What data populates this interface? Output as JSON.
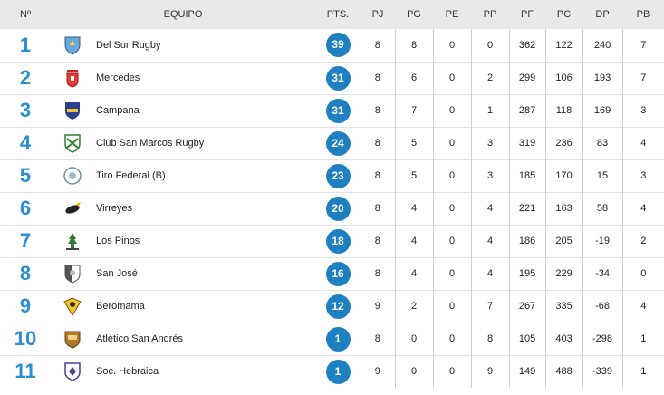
{
  "headers": {
    "pos": "Nº",
    "team": "EQUIPO",
    "pts": "PTS.",
    "pj": "PJ",
    "pg": "PG",
    "pe": "PE",
    "pp": "PP",
    "pf": "PF",
    "pc": "PC",
    "dp": "DP",
    "pb": "PB"
  },
  "rows": [
    {
      "pos": "1",
      "team": "Del Sur Rugby",
      "crest": "del-sur-shield-icon",
      "pts": "39",
      "pj": "8",
      "pg": "8",
      "pe": "0",
      "pp": "0",
      "pf": "362",
      "pc": "122",
      "dp": "240",
      "pb": "7"
    },
    {
      "pos": "2",
      "team": "Mercedes",
      "crest": "mercedes-crest-icon",
      "pts": "31",
      "pj": "8",
      "pg": "6",
      "pe": "0",
      "pp": "2",
      "pf": "299",
      "pc": "106",
      "dp": "193",
      "pb": "7"
    },
    {
      "pos": "3",
      "team": "Campana",
      "crest": "campana-crest-icon",
      "pts": "31",
      "pj": "8",
      "pg": "7",
      "pe": "0",
      "pp": "1",
      "pf": "287",
      "pc": "118",
      "dp": "169",
      "pb": "3"
    },
    {
      "pos": "4",
      "team": "Club San Marcos Rugby",
      "crest": "san-marcos-crest-icon",
      "pts": "24",
      "pj": "8",
      "pg": "5",
      "pe": "0",
      "pp": "3",
      "pf": "319",
      "pc": "236",
      "dp": "83",
      "pb": "4"
    },
    {
      "pos": "5",
      "team": "Tiro Federal (B)",
      "crest": "tiro-federal-crest-icon",
      "pts": "23",
      "pj": "8",
      "pg": "5",
      "pe": "0",
      "pp": "3",
      "pf": "185",
      "pc": "170",
      "dp": "15",
      "pb": "3"
    },
    {
      "pos": "6",
      "team": "Virreyes",
      "crest": "virreyes-crest-icon",
      "pts": "20",
      "pj": "8",
      "pg": "4",
      "pe": "0",
      "pp": "4",
      "pf": "221",
      "pc": "163",
      "dp": "58",
      "pb": "4"
    },
    {
      "pos": "7",
      "team": "Los Pinos",
      "crest": "los-pinos-crest-icon",
      "pts": "18",
      "pj": "8",
      "pg": "4",
      "pe": "0",
      "pp": "4",
      "pf": "186",
      "pc": "205",
      "dp": "-19",
      "pb": "2"
    },
    {
      "pos": "8",
      "team": "San José",
      "crest": "san-jose-crest-icon",
      "pts": "16",
      "pj": "8",
      "pg": "4",
      "pe": "0",
      "pp": "4",
      "pf": "195",
      "pc": "229",
      "dp": "-34",
      "pb": "0"
    },
    {
      "pos": "9",
      "team": "Beromama",
      "crest": "beromama-crest-icon",
      "pts": "12",
      "pj": "9",
      "pg": "2",
      "pe": "0",
      "pp": "7",
      "pf": "267",
      "pc": "335",
      "dp": "-68",
      "pb": "4"
    },
    {
      "pos": "10",
      "team": "Atlético San Andrés",
      "crest": "san-andres-crest-icon",
      "pts": "1",
      "pj": "8",
      "pg": "0",
      "pe": "0",
      "pp": "8",
      "pf": "105",
      "pc": "403",
      "dp": "-298",
      "pb": "1"
    },
    {
      "pos": "11",
      "team": "Soc. Hebraica",
      "crest": "hebraica-crest-icon",
      "pts": "1",
      "pj": "9",
      "pg": "0",
      "pe": "0",
      "pp": "9",
      "pf": "149",
      "pc": "488",
      "dp": "-339",
      "pb": "1"
    }
  ],
  "colors": {
    "accent": "#2b8fd0",
    "badge": "#1e7fc1",
    "header_bg": "#e9e9e9"
  }
}
